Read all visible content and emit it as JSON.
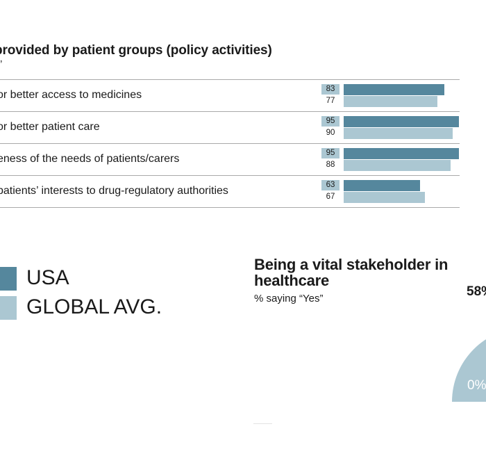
{
  "colors": {
    "usa": "#55879d",
    "global": "#abc7d2",
    "pie_fill": "#abc7d2",
    "rule": "#a9a9a9"
  },
  "chart_data": [
    {
      "type": "bar",
      "title": "provided by patient groups (policy activities)",
      "subtitle": "”",
      "categories": [
        "or better access to medicines",
        "or better patient care",
        "eness of the needs of patients/carers",
        " patients’ interests to drug-regulatory authorities"
      ],
      "series": [
        {
          "name": "USA",
          "values": [
            83,
            95,
            95,
            63
          ]
        },
        {
          "name": "GLOBAL AVG.",
          "values": [
            77,
            90,
            88,
            67
          ]
        }
      ],
      "xlim": [
        0,
        100
      ],
      "grid": false
    },
    {
      "type": "pie",
      "title": "Being a vital stakeholder in healthcare",
      "subtitle": "% saying “Yes”",
      "labels": [
        "58%",
        "0%"
      ],
      "visible_fraction": 0.58
    }
  ],
  "legend": {
    "items": [
      {
        "label": "USA",
        "color": "#55879d"
      },
      {
        "label": "GLOBAL AVG.",
        "color": "#abc7d2"
      }
    ]
  }
}
